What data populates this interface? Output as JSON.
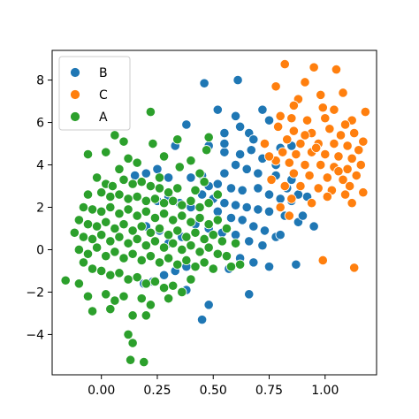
{
  "chart_data": {
    "type": "scatter",
    "title": "",
    "xlabel": "",
    "ylabel": "",
    "xlim": [
      -0.22,
      1.23
    ],
    "ylim": [
      -5.9,
      9.4
    ],
    "xticks": [
      "0.00",
      "0.25",
      "0.50",
      "0.75",
      "1.00"
    ],
    "yticks": [
      "−4",
      "−2",
      "0",
      "2",
      "4",
      "6",
      "8"
    ],
    "legend_position": "top-left",
    "grid": false,
    "series": [
      {
        "name": "B",
        "color": "#1f77b4",
        "points": [
          [
            0.46,
            7.85
          ],
          [
            0.61,
            8.0
          ],
          [
            0.52,
            6.6
          ],
          [
            0.38,
            5.9
          ],
          [
            0.6,
            6.3
          ],
          [
            0.62,
            5.8
          ],
          [
            0.72,
            6.6
          ],
          [
            0.75,
            6.1
          ],
          [
            0.55,
            5.5
          ],
          [
            0.66,
            5.5
          ],
          [
            0.33,
            4.9
          ],
          [
            0.48,
            4.9
          ],
          [
            0.55,
            4.6
          ],
          [
            0.62,
            4.5
          ],
          [
            0.67,
            4.7
          ],
          [
            0.72,
            4.3
          ],
          [
            0.8,
            4.8
          ],
          [
            0.85,
            4.9
          ],
          [
            0.6,
            4.0
          ],
          [
            0.65,
            3.8
          ],
          [
            0.7,
            3.6
          ],
          [
            0.78,
            3.5
          ],
          [
            0.85,
            3.3
          ],
          [
            0.55,
            3.6
          ],
          [
            0.45,
            3.5
          ],
          [
            0.4,
            3.4
          ],
          [
            0.3,
            3.4
          ],
          [
            0.25,
            3.8
          ],
          [
            0.2,
            3.6
          ],
          [
            0.15,
            3.5
          ],
          [
            0.48,
            3.0
          ],
          [
            0.52,
            3.1
          ],
          [
            0.58,
            2.9
          ],
          [
            0.63,
            2.8
          ],
          [
            0.7,
            2.9
          ],
          [
            0.75,
            2.6
          ],
          [
            0.8,
            2.4
          ],
          [
            0.85,
            2.3
          ],
          [
            0.88,
            2.6
          ],
          [
            0.92,
            2.5
          ],
          [
            0.45,
            2.6
          ],
          [
            0.5,
            2.4
          ],
          [
            0.55,
            2.2
          ],
          [
            0.6,
            2.1
          ],
          [
            0.65,
            2.0
          ],
          [
            0.7,
            1.9
          ],
          [
            0.75,
            1.8
          ],
          [
            0.82,
            1.6
          ],
          [
            0.88,
            1.3
          ],
          [
            0.95,
            1.1
          ],
          [
            0.4,
            2.0
          ],
          [
            0.35,
            2.2
          ],
          [
            0.3,
            2.5
          ],
          [
            0.25,
            2.3
          ],
          [
            0.52,
            1.8
          ],
          [
            0.58,
            1.5
          ],
          [
            0.63,
            1.4
          ],
          [
            0.68,
            1.1
          ],
          [
            0.73,
            0.9
          ],
          [
            0.78,
            0.6
          ],
          [
            0.42,
            1.2
          ],
          [
            0.48,
            1.0
          ],
          [
            0.54,
            0.8
          ],
          [
            0.6,
            0.7
          ],
          [
            0.66,
            0.4
          ],
          [
            0.72,
            0.2
          ],
          [
            0.36,
            0.6
          ],
          [
            0.3,
            0.3
          ],
          [
            0.26,
            0.9
          ],
          [
            0.2,
            1.1
          ],
          [
            0.62,
            -0.4
          ],
          [
            0.68,
            -0.6
          ],
          [
            0.75,
            -0.8
          ],
          [
            0.87,
            -0.7
          ],
          [
            0.57,
            -0.9
          ],
          [
            0.38,
            -0.8
          ],
          [
            0.33,
            -1.0
          ],
          [
            0.28,
            -1.2
          ],
          [
            0.23,
            -1.5
          ],
          [
            0.19,
            -1.6
          ],
          [
            0.66,
            -2.1
          ],
          [
            0.48,
            -2.6
          ],
          [
            0.45,
            -3.3
          ],
          [
            0.38,
            -1.9
          ],
          [
            0.8,
            0.7
          ],
          [
            0.9,
            1.6
          ],
          [
            0.83,
            2.9
          ],
          [
            0.55,
            5.0
          ],
          [
            0.68,
            5.2
          ],
          [
            0.78,
            4.0
          ]
        ]
      },
      {
        "name": "C",
        "color": "#ff7f0e",
        "points": [
          [
            0.82,
            8.75
          ],
          [
            0.95,
            8.6
          ],
          [
            1.05,
            8.5
          ],
          [
            0.78,
            7.7
          ],
          [
            0.91,
            7.9
          ],
          [
            0.88,
            7.1
          ],
          [
            0.98,
            7.3
          ],
          [
            1.08,
            7.4
          ],
          [
            1.04,
            6.6
          ],
          [
            1.18,
            6.5
          ],
          [
            0.8,
            6.3
          ],
          [
            0.85,
            6.2
          ],
          [
            0.92,
            6.1
          ],
          [
            1.0,
            6.2
          ],
          [
            1.12,
            6.1
          ],
          [
            0.79,
            5.8
          ],
          [
            0.86,
            5.6
          ],
          [
            0.94,
            5.5
          ],
          [
            1.02,
            5.7
          ],
          [
            1.07,
            5.4
          ],
          [
            1.13,
            5.5
          ],
          [
            1.17,
            5.1
          ],
          [
            0.83,
            5.2
          ],
          [
            0.89,
            5.0
          ],
          [
            0.97,
            5.0
          ],
          [
            1.04,
            5.0
          ],
          [
            1.1,
            4.9
          ],
          [
            1.15,
            4.7
          ],
          [
            0.81,
            4.6
          ],
          [
            0.87,
            4.5
          ],
          [
            0.94,
            4.6
          ],
          [
            1.0,
            4.5
          ],
          [
            1.06,
            4.4
          ],
          [
            1.12,
            4.3
          ],
          [
            0.78,
            4.2
          ],
          [
            0.84,
            4.1
          ],
          [
            0.91,
            4.0
          ],
          [
            0.98,
            4.0
          ],
          [
            1.04,
            3.9
          ],
          [
            1.1,
            3.8
          ],
          [
            1.16,
            4.0
          ],
          [
            0.86,
            3.6
          ],
          [
            0.93,
            3.5
          ],
          [
            1.01,
            3.4
          ],
          [
            1.08,
            3.3
          ],
          [
            1.14,
            3.5
          ],
          [
            0.76,
            3.3
          ],
          [
            0.82,
            3.0
          ],
          [
            0.89,
            3.0
          ],
          [
            0.97,
            2.9
          ],
          [
            1.03,
            2.8
          ],
          [
            1.11,
            3.0
          ],
          [
            1.17,
            2.7
          ],
          [
            0.85,
            2.4
          ],
          [
            0.94,
            2.2
          ],
          [
            1.01,
            2.5
          ],
          [
            1.09,
            2.6
          ],
          [
            1.12,
            2.2
          ],
          [
            0.8,
            2.0
          ],
          [
            0.84,
            1.6
          ],
          [
            0.73,
            5.0
          ],
          [
            0.75,
            4.4
          ],
          [
            1.06,
            3.7
          ],
          [
            0.99,
            -0.5
          ],
          [
            1.13,
            -0.85
          ],
          [
            0.96,
            4.8
          ],
          [
            0.91,
            5.4
          ],
          [
            1.09,
            5.9
          ],
          [
            0.99,
            6.7
          ],
          [
            0.86,
            6.8
          ]
        ]
      },
      {
        "name": "A",
        "color": "#2ca02c",
        "points": [
          [
            0.22,
            6.5
          ],
          [
            0.06,
            5.4
          ],
          [
            0.1,
            5.1
          ],
          [
            0.23,
            5.0
          ],
          [
            0.34,
            5.2
          ],
          [
            -0.06,
            4.5
          ],
          [
            0.02,
            4.6
          ],
          [
            0.12,
            4.3
          ],
          [
            0.16,
            4.1
          ],
          [
            0.28,
            4.4
          ],
          [
            0.48,
            5.3
          ],
          [
            0.47,
            4.7
          ],
          [
            0.4,
            4.2
          ],
          [
            0.35,
            3.9
          ],
          [
            0.08,
            3.8
          ],
          [
            -0.02,
            3.4
          ],
          [
            0.02,
            3.1
          ],
          [
            0.05,
            3.0
          ],
          [
            0.1,
            3.3
          ],
          [
            0.14,
            3.1
          ],
          [
            0.18,
            3.2
          ],
          [
            0.22,
            3.0
          ],
          [
            0.26,
            2.9
          ],
          [
            0.3,
            2.7
          ],
          [
            0.34,
            2.9
          ],
          [
            -0.06,
            2.6
          ],
          [
            0.0,
            2.7
          ],
          [
            0.04,
            2.5
          ],
          [
            0.08,
            2.6
          ],
          [
            0.12,
            2.4
          ],
          [
            0.16,
            2.5
          ],
          [
            0.2,
            2.3
          ],
          [
            0.24,
            2.4
          ],
          [
            0.28,
            2.2
          ],
          [
            0.32,
            2.3
          ],
          [
            0.36,
            2.1
          ],
          [
            0.4,
            2.3
          ],
          [
            0.44,
            2.0
          ],
          [
            0.48,
            2.2
          ],
          [
            -0.08,
            2.0
          ],
          [
            -0.04,
            1.9
          ],
          [
            0.0,
            1.8
          ],
          [
            0.04,
            2.0
          ],
          [
            0.08,
            1.7
          ],
          [
            0.12,
            1.9
          ],
          [
            0.16,
            1.6
          ],
          [
            0.2,
            1.8
          ],
          [
            0.24,
            1.5
          ],
          [
            0.28,
            1.7
          ],
          [
            0.32,
            1.4
          ],
          [
            0.36,
            1.6
          ],
          [
            0.4,
            1.3
          ],
          [
            0.44,
            1.5
          ],
          [
            0.48,
            1.2
          ],
          [
            0.52,
            1.4
          ],
          [
            -0.1,
            1.4
          ],
          [
            -0.06,
            1.2
          ],
          [
            -0.02,
            1.1
          ],
          [
            0.02,
            1.3
          ],
          [
            0.06,
            1.0
          ],
          [
            0.1,
            1.2
          ],
          [
            0.14,
            0.9
          ],
          [
            0.18,
            1.1
          ],
          [
            0.22,
            0.8
          ],
          [
            0.26,
            1.0
          ],
          [
            0.3,
            0.7
          ],
          [
            0.34,
            0.9
          ],
          [
            0.38,
            0.6
          ],
          [
            0.42,
            0.8
          ],
          [
            0.46,
            0.5
          ],
          [
            0.5,
            0.7
          ],
          [
            0.54,
            0.4
          ],
          [
            -0.12,
            0.8
          ],
          [
            -0.08,
            0.6
          ],
          [
            -0.04,
            0.5
          ],
          [
            0.0,
            0.7
          ],
          [
            0.04,
            0.4
          ],
          [
            0.08,
            0.6
          ],
          [
            0.12,
            0.3
          ],
          [
            0.16,
            0.5
          ],
          [
            0.2,
            0.2
          ],
          [
            0.24,
            0.4
          ],
          [
            0.28,
            0.1
          ],
          [
            0.32,
            0.3
          ],
          [
            0.36,
            0.0
          ],
          [
            0.4,
            0.2
          ],
          [
            0.44,
            -0.1
          ],
          [
            0.48,
            0.1
          ],
          [
            0.52,
            -0.2
          ],
          [
            -0.1,
            0.0
          ],
          [
            -0.06,
            -0.2
          ],
          [
            -0.02,
            0.1
          ],
          [
            0.02,
            -0.3
          ],
          [
            0.06,
            -0.1
          ],
          [
            0.1,
            -0.4
          ],
          [
            0.14,
            -0.2
          ],
          [
            0.18,
            -0.5
          ],
          [
            0.22,
            -0.3
          ],
          [
            0.26,
            -0.6
          ],
          [
            0.3,
            -0.4
          ],
          [
            0.34,
            -0.7
          ],
          [
            0.38,
            -0.5
          ],
          [
            0.42,
            -0.8
          ],
          [
            0.46,
            -0.6
          ],
          [
            0.5,
            -0.9
          ],
          [
            0.58,
            -0.8
          ],
          [
            0.62,
            -0.7
          ],
          [
            -0.08,
            -0.6
          ],
          [
            -0.04,
            -0.9
          ],
          [
            0.0,
            -1.0
          ],
          [
            0.04,
            -1.2
          ],
          [
            0.08,
            -1.1
          ],
          [
            0.12,
            -1.4
          ],
          [
            0.16,
            -1.3
          ],
          [
            0.2,
            -1.6
          ],
          [
            0.24,
            -1.5
          ],
          [
            0.28,
            -1.8
          ],
          [
            0.32,
            -1.7
          ],
          [
            0.36,
            -2.0
          ],
          [
            0.4,
            -1.4
          ],
          [
            -0.16,
            -1.45
          ],
          [
            -0.1,
            -1.6
          ],
          [
            -0.06,
            -2.2
          ],
          [
            0.02,
            -2.1
          ],
          [
            0.06,
            -2.4
          ],
          [
            0.1,
            -2.2
          ],
          [
            0.18,
            -2.3
          ],
          [
            0.22,
            -2.6
          ],
          [
            0.3,
            -2.3
          ],
          [
            -0.04,
            -2.9
          ],
          [
            0.04,
            -2.8
          ],
          [
            0.14,
            -3.1
          ],
          [
            0.2,
            -3.1
          ],
          [
            0.12,
            -4.0
          ],
          [
            0.14,
            -4.4
          ],
          [
            0.13,
            -5.2
          ],
          [
            0.19,
            -5.3
          ],
          [
            0.42,
            2.8
          ],
          [
            0.46,
            3.2
          ],
          [
            0.52,
            2.6
          ],
          [
            0.56,
            1.0
          ],
          [
            0.6,
            0.3
          ],
          [
            0.56,
            -0.3
          ],
          [
            0.44,
            3.6
          ],
          [
            0.26,
            3.4
          ]
        ]
      }
    ]
  }
}
